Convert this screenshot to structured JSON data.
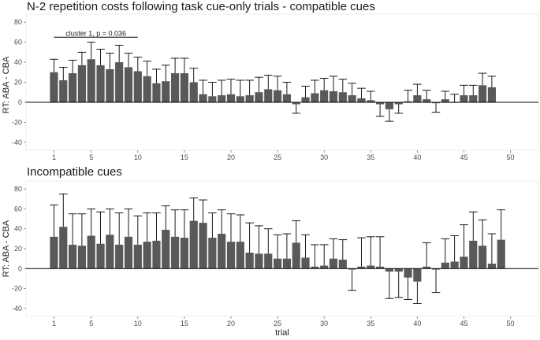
{
  "chart_data": [
    {
      "type": "bar",
      "title": "N-2 repetition costs following task cue-only trials - compatible cues",
      "xlabel": "",
      "ylabel": "RT: ABA - CBA",
      "xlim": [
        -2,
        53
      ],
      "ylim": [
        -48,
        88
      ],
      "xticks": [
        1,
        5,
        10,
        15,
        20,
        25,
        30,
        35,
        40,
        45,
        50
      ],
      "yticks": [
        -40,
        -20,
        0,
        20,
        40,
        60,
        80
      ],
      "grid": false,
      "bar_color": "#595959",
      "x": [
        1,
        2,
        3,
        4,
        5,
        6,
        7,
        8,
        9,
        10,
        11,
        12,
        13,
        14,
        15,
        16,
        17,
        18,
        19,
        20,
        21,
        22,
        23,
        24,
        25,
        26,
        27,
        28,
        29,
        30,
        31,
        32,
        33,
        34,
        35,
        36,
        37,
        38,
        39,
        40,
        41,
        42,
        43,
        44,
        45,
        46,
        47,
        48
      ],
      "values": [
        30,
        22,
        29,
        37,
        43,
        37,
        33,
        40,
        35,
        31,
        26,
        19,
        21,
        29,
        29,
        20,
        8,
        6,
        7,
        8,
        6,
        7,
        10,
        13,
        12,
        8,
        -2,
        5,
        9,
        12,
        11,
        10,
        7,
        4,
        2,
        -2,
        -7,
        -2,
        1,
        7,
        3,
        -1,
        3,
        0,
        7,
        7,
        17,
        15
      ],
      "error_upper": [
        43,
        35,
        42,
        50,
        60,
        53,
        49,
        57,
        49,
        45,
        41,
        33,
        37,
        44,
        44,
        34,
        22,
        20,
        22,
        23,
        22,
        22,
        25,
        27,
        26,
        20,
        -11,
        16,
        22,
        24,
        26,
        23,
        19,
        14,
        11,
        -14,
        -19,
        -11,
        12,
        18,
        12,
        -10,
        11,
        8,
        17,
        17,
        29,
        26
      ],
      "annotations": [
        {
          "text": "cluster 1, p = 0.036",
          "x_start": 1,
          "x_end": 10,
          "y": 65
        }
      ]
    },
    {
      "type": "bar",
      "title": "Incompatible cues",
      "xlabel": "trial",
      "ylabel": "RT: ABA - CBA",
      "xlim": [
        -2,
        53
      ],
      "ylim": [
        -48,
        88
      ],
      "xticks": [
        1,
        5,
        10,
        15,
        20,
        25,
        30,
        35,
        40,
        45,
        50
      ],
      "yticks": [
        -40,
        -20,
        0,
        20,
        40,
        60,
        80
      ],
      "grid": false,
      "bar_color": "#595959",
      "x": [
        1,
        2,
        3,
        4,
        5,
        6,
        7,
        8,
        9,
        10,
        11,
        12,
        13,
        14,
        15,
        16,
        17,
        18,
        19,
        20,
        21,
        22,
        23,
        24,
        25,
        26,
        27,
        28,
        29,
        30,
        31,
        32,
        33,
        34,
        35,
        36,
        37,
        38,
        39,
        40,
        41,
        42,
        43,
        44,
        45,
        46,
        47,
        48,
        49
      ],
      "values": [
        32,
        42,
        24,
        23,
        33,
        25,
        34,
        24,
        32,
        24,
        27,
        28,
        39,
        32,
        31,
        48,
        46,
        31,
        35,
        27,
        27,
        16,
        15,
        15,
        10,
        10,
        26,
        11,
        2,
        3,
        10,
        9,
        -1,
        2,
        3,
        2,
        -3,
        -3,
        -9,
        -13,
        2,
        -1,
        6,
        7,
        12,
        28,
        23,
        5,
        29
      ],
      "error_upper": [
        64,
        75,
        55,
        55,
        60,
        57,
        60,
        56,
        60,
        53,
        56,
        56,
        63,
        59,
        59,
        71,
        69,
        56,
        59,
        55,
        54,
        46,
        43,
        40,
        34,
        35,
        48,
        34,
        24,
        24,
        30,
        29,
        -22,
        31,
        32,
        32,
        -30,
        -29,
        -31,
        -35,
        26,
        -24,
        30,
        33,
        44,
        57,
        49,
        35,
        59
      ]
    }
  ]
}
